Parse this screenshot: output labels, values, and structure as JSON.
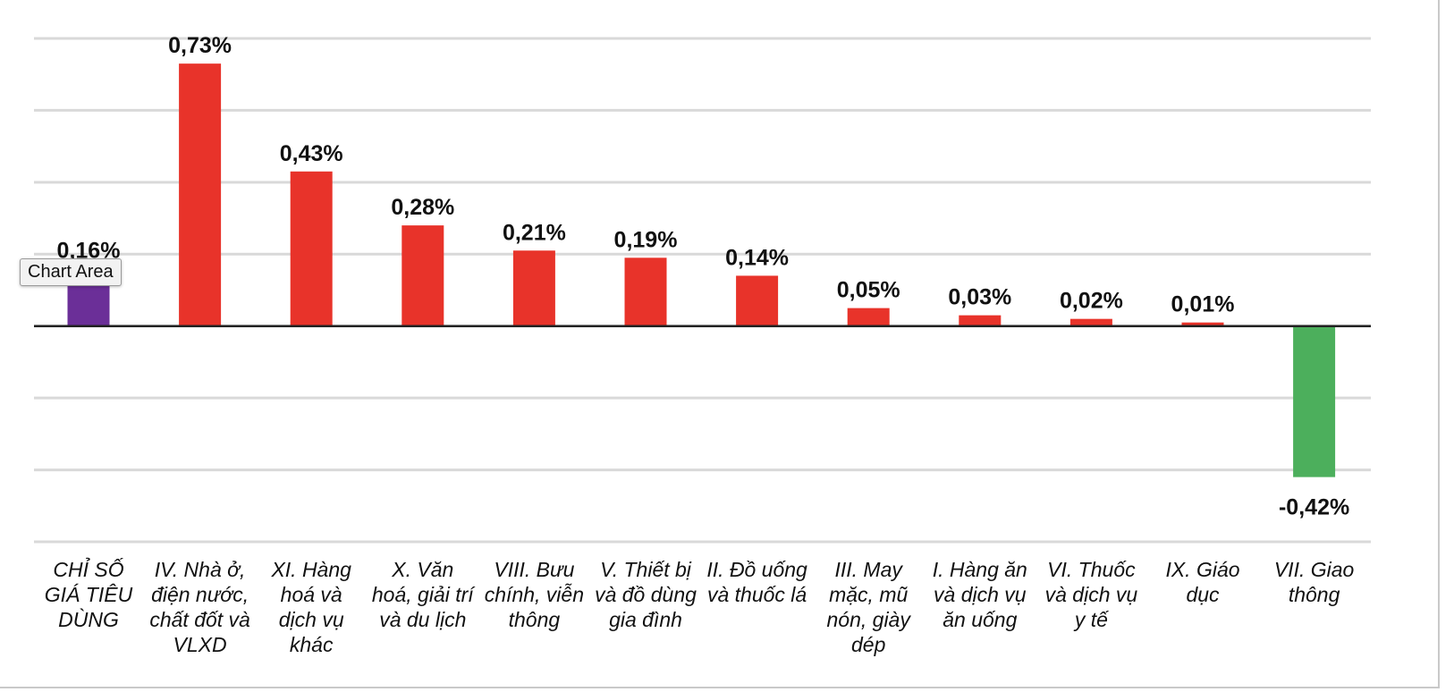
{
  "chart_data": {
    "type": "bar",
    "categories": [
      "CHỈ SỐ GIÁ TIÊU DÙNG",
      "IV. Nhà ở, điện nước, chất đốt và VLXD",
      "XI. Hàng hoá và dịch vụ khác",
      "X. Văn hoá, giải trí và du lịch",
      "VIII. Bưu chính, viễn thông",
      "V. Thiết bị và đồ dùng gia đình",
      "II. Đồ uống và thuốc lá",
      "III. May mặc, mũ nón, giày dép",
      "I. Hàng ăn và dịch vụ ăn uống",
      "VI. Thuốc và dịch vụ y tế",
      "IX. Giáo dục",
      "VII. Giao thông"
    ],
    "category_lines": [
      [
        "CHỈ SỐ",
        "GIÁ TIÊU",
        "DÙNG"
      ],
      [
        "IV. Nhà ở,",
        "điện nước,",
        "chất đốt và",
        "VLXD"
      ],
      [
        "XI. Hàng",
        "hoá và",
        "dịch vụ",
        "khác"
      ],
      [
        "X. Văn",
        "hoá, giải trí",
        "và du lịch"
      ],
      [
        "VIII. Bưu",
        "chính, viễn",
        "thông"
      ],
      [
        "V. Thiết bị",
        "và đồ dùng",
        "gia đình"
      ],
      [
        "II. Đồ uống",
        "và thuốc lá"
      ],
      [
        "III. May",
        "mặc, mũ",
        "nón, giày",
        "dép"
      ],
      [
        "I. Hàng ăn",
        "và dịch vụ",
        "ăn uống"
      ],
      [
        "VI. Thuốc",
        "và dịch vụ",
        "y tế"
      ],
      [
        "IX. Giáo",
        "dục"
      ],
      [
        "VII. Giao",
        "thông"
      ]
    ],
    "values": [
      0.16,
      0.73,
      0.43,
      0.28,
      0.21,
      0.19,
      0.14,
      0.05,
      0.03,
      0.02,
      0.01,
      -0.42
    ],
    "value_labels": [
      "0,16%",
      "0,73%",
      "0,43%",
      "0,28%",
      "0,21%",
      "0,19%",
      "0,14%",
      "0,05%",
      "0,03%",
      "0,02%",
      "0,01%",
      "-0,42%"
    ],
    "bar_colors": [
      "#6b2f98",
      "#e8332a",
      "#e8332a",
      "#e8332a",
      "#e8332a",
      "#e8332a",
      "#e8332a",
      "#e8332a",
      "#e8332a",
      "#e8332a",
      "#e8332a",
      "#4caf5c"
    ],
    "ylim": [
      -0.6,
      0.8
    ],
    "gridlines": [
      0.8,
      0.6,
      0.4,
      0.2,
      0.0,
      -0.2,
      -0.4,
      -0.6
    ],
    "grid": true,
    "title": "",
    "xlabel": "",
    "ylabel": ""
  },
  "tooltip": {
    "text": "Chart Area"
  }
}
